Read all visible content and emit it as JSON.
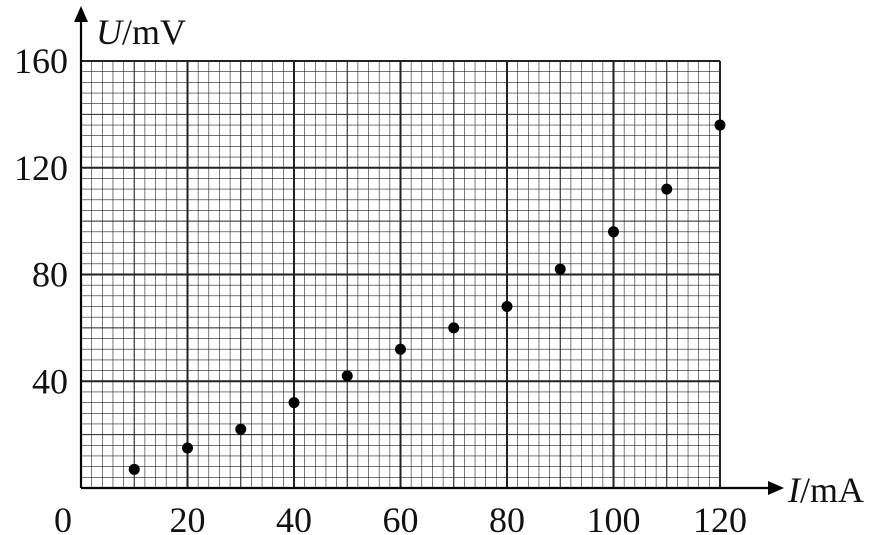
{
  "chart_data": {
    "type": "scatter",
    "title": "",
    "xlabel": {
      "var": "I",
      "unit": "/mA"
    },
    "ylabel": {
      "var": "U",
      "unit": "/mV"
    },
    "xlim": [
      0,
      120
    ],
    "ylim": [
      0,
      160
    ],
    "x_ticks": [
      20,
      40,
      60,
      80,
      100,
      120
    ],
    "y_ticks": [
      40,
      80,
      120,
      160
    ],
    "origin_label": "0",
    "grid": "on (fine graph-paper grid, major lines every 20 mA and 40 mV)",
    "points": [
      {
        "x": 10,
        "y": 7
      },
      {
        "x": 20,
        "y": 15
      },
      {
        "x": 30,
        "y": 22
      },
      {
        "x": 40,
        "y": 32
      },
      {
        "x": 50,
        "y": 42
      },
      {
        "x": 60,
        "y": 52
      },
      {
        "x": 70,
        "y": 60
      },
      {
        "x": 80,
        "y": 68
      },
      {
        "x": 90,
        "y": 82
      },
      {
        "x": 100,
        "y": 96
      },
      {
        "x": 110,
        "y": 112
      },
      {
        "x": 120,
        "y": 136
      }
    ],
    "colors": {
      "grid": "#222222",
      "points": "#000000",
      "text": "#111111"
    }
  }
}
